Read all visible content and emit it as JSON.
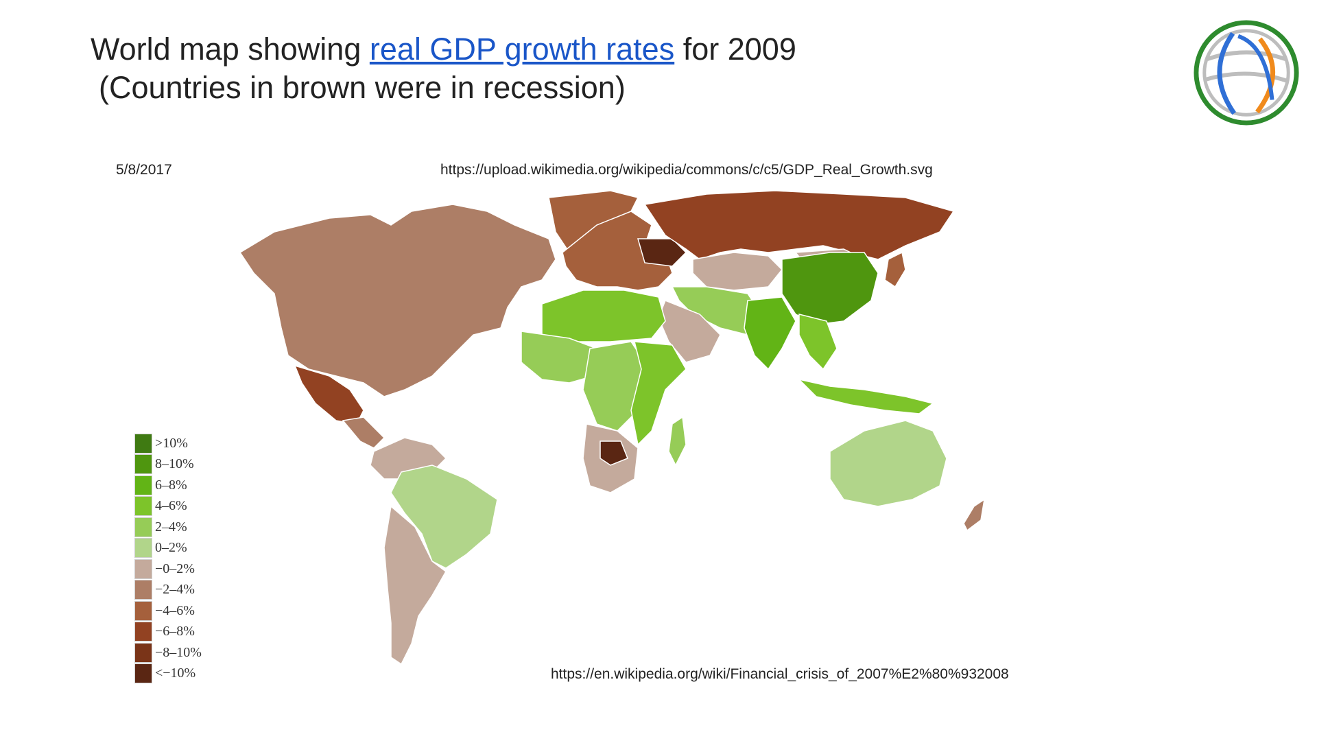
{
  "slide": {
    "title_prefix": "World map showing ",
    "title_link": "real GDP growth rates",
    "title_suffix": " for 2009",
    "subtitle": "(Countries in brown were in recession)",
    "date": "5/8/2017",
    "source_top": "https://upload.wikimedia.org/wikipedia/commons/c/c5/GDP_Real_Growth.svg",
    "source_bottom": "https://en.wikipedia.org/wiki/Financial_crisis_of_2007%E2%80%932008",
    "logo_icon": "globe-logo-icon"
  },
  "colors": {
    "link": "#1a56c8",
    "ocean": "#ffffff"
  },
  "legend": [
    {
      "label": ">10%",
      "color": "#3f7a12"
    },
    {
      "label": "8–10%",
      "color": "#4f960f"
    },
    {
      "label": "6–8%",
      "color": "#62b416"
    },
    {
      "label": "4–6%",
      "color": "#7dc42a"
    },
    {
      "label": "2–4%",
      "color": "#96cc57"
    },
    {
      "label": "0–2%",
      "color": "#b1d58a"
    },
    {
      "label": "−0–2%",
      "color": "#c4aa9c"
    },
    {
      "label": "−2–4%",
      "color": "#ad7e66"
    },
    {
      "label": "−4–6%",
      "color": "#a5603c"
    },
    {
      "label": "−6–8%",
      "color": "#924222"
    },
    {
      "label": "−8–10%",
      "color": "#7a3418"
    },
    {
      "label": "<−10%",
      "color": "#5a2613"
    }
  ],
  "map_regions": [
    {
      "name": "north-america-north",
      "bucket": "−2–4%"
    },
    {
      "name": "greenland",
      "bucket": "−4–6%"
    },
    {
      "name": "mexico",
      "bucket": "−6–8%"
    },
    {
      "name": "central-america",
      "bucket": "−2–4%"
    },
    {
      "name": "south-america-north",
      "bucket": "−0–2%"
    },
    {
      "name": "brazil",
      "bucket": "0–2%"
    },
    {
      "name": "south-america-south",
      "bucket": "−0–2%"
    },
    {
      "name": "europe",
      "bucket": "−4–6%"
    },
    {
      "name": "ukraine",
      "bucket": "<−10%"
    },
    {
      "name": "russia",
      "bucket": "−6–8%"
    },
    {
      "name": "central-asia",
      "bucket": "−0–2%"
    },
    {
      "name": "middle-east",
      "bucket": "2–4%"
    },
    {
      "name": "arabia",
      "bucket": "−0–2%"
    },
    {
      "name": "north-africa",
      "bucket": "4–6%"
    },
    {
      "name": "west-africa",
      "bucket": "2–4%"
    },
    {
      "name": "central-africa",
      "bucket": "2–4%"
    },
    {
      "name": "east-africa",
      "bucket": "4–6%"
    },
    {
      "name": "southern-africa",
      "bucket": "−0–2%"
    },
    {
      "name": "botswana",
      "bucket": "<−10%"
    },
    {
      "name": "madagascar",
      "bucket": "2–4%"
    },
    {
      "name": "india",
      "bucket": "6–8%"
    },
    {
      "name": "china",
      "bucket": "8–10%"
    },
    {
      "name": "mongolia",
      "bucket": "−0–2%"
    },
    {
      "name": "southeast-asia",
      "bucket": "4–6%"
    },
    {
      "name": "japan",
      "bucket": "−4–6%"
    },
    {
      "name": "indonesia",
      "bucket": "4–6%"
    },
    {
      "name": "australia",
      "bucket": "0–2%"
    },
    {
      "name": "new-zealand",
      "bucket": "−2–4%"
    }
  ]
}
